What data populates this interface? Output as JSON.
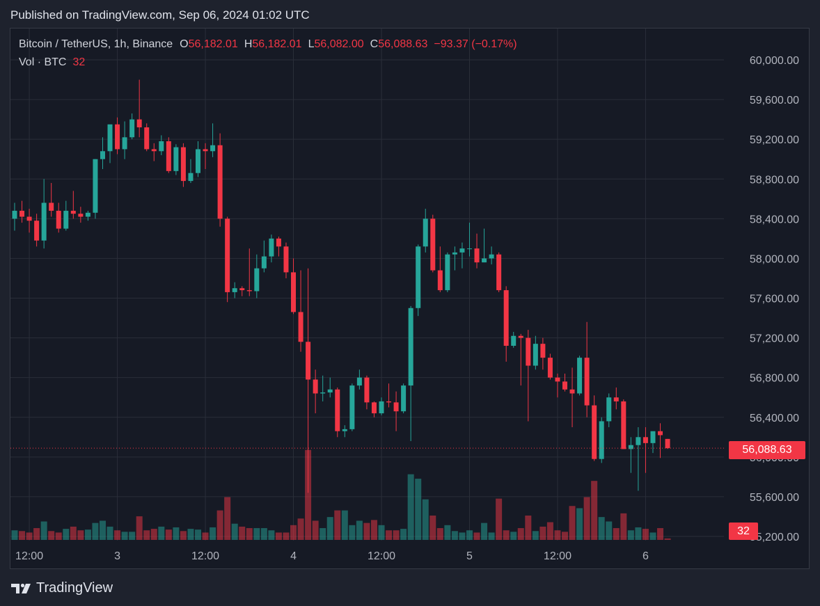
{
  "header": {
    "published": "Published on TradingView.com, Sep 06, 2024 01:02 UTC"
  },
  "legend": {
    "symbol": "Bitcoin / TetherUS, 1h, Binance",
    "o_label": "O",
    "o_value": "56,182.01",
    "h_label": "H",
    "h_value": "56,182.01",
    "l_label": "L",
    "l_value": "56,082.00",
    "c_label": "C",
    "c_value": "56,088.63",
    "change": "−93.37 (−0.17%)"
  },
  "volume_legend": {
    "label": "Vol · BTC",
    "value": "32"
  },
  "price_tag": "56,088.63",
  "volume_tag": "32",
  "footer": {
    "brand": "TradingView"
  },
  "colors": {
    "up": "#26a69a",
    "down": "#f23645",
    "background": "#161a25",
    "grid": "#2a2e39"
  },
  "chart_data": {
    "type": "candlestick",
    "symbol": "BTCUSDT",
    "interval": "1h",
    "ylim": [
      55200,
      60200
    ],
    "y_ticks": [
      {
        "value": 60000,
        "label": "60,000.00"
      },
      {
        "value": 59600,
        "label": "59,600.00"
      },
      {
        "value": 59200,
        "label": "59,200.00"
      },
      {
        "value": 58800,
        "label": "58,800.00"
      },
      {
        "value": 58400,
        "label": "58,400.00"
      },
      {
        "value": 58000,
        "label": "58,000.00"
      },
      {
        "value": 57600,
        "label": "57,600.00"
      },
      {
        "value": 57200,
        "label": "57,200.00"
      },
      {
        "value": 56800,
        "label": "56,800.00"
      },
      {
        "value": 56400,
        "label": "56,400.00"
      },
      {
        "value": 56000,
        "label": "56,000.00"
      },
      {
        "value": 55600,
        "label": "55,600.00"
      },
      {
        "value": 55200,
        "label": "55,200.00"
      }
    ],
    "x_ticks": [
      {
        "index": 2,
        "label": "12:00"
      },
      {
        "index": 14,
        "label": "3"
      },
      {
        "index": 26,
        "label": "12:00"
      },
      {
        "index": 38,
        "label": "4"
      },
      {
        "index": 50,
        "label": "12:00"
      },
      {
        "index": 62,
        "label": "5"
      },
      {
        "index": 74,
        "label": "12:00"
      },
      {
        "index": 86,
        "label": "6"
      }
    ],
    "last_price": 56088.63,
    "candles": [
      {
        "o": 58400,
        "h": 58560,
        "l": 58280,
        "c": 58480,
        "v": 1.3
      },
      {
        "o": 58480,
        "h": 58580,
        "l": 58360,
        "c": 58420,
        "v": 1.2
      },
      {
        "o": 58420,
        "h": 58500,
        "l": 58260,
        "c": 58380,
        "v": 1.0
      },
      {
        "o": 58380,
        "h": 58450,
        "l": 58120,
        "c": 58180,
        "v": 1.6
      },
      {
        "o": 58180,
        "h": 58800,
        "l": 58100,
        "c": 58560,
        "v": 2.5
      },
      {
        "o": 58560,
        "h": 58760,
        "l": 58420,
        "c": 58480,
        "v": 1.2
      },
      {
        "o": 58480,
        "h": 58560,
        "l": 58260,
        "c": 58300,
        "v": 1.0
      },
      {
        "o": 58300,
        "h": 58580,
        "l": 58280,
        "c": 58480,
        "v": 1.5
      },
      {
        "o": 58480,
        "h": 58680,
        "l": 58400,
        "c": 58450,
        "v": 1.8
      },
      {
        "o": 58450,
        "h": 58520,
        "l": 58360,
        "c": 58420,
        "v": 1.3
      },
      {
        "o": 58420,
        "h": 58480,
        "l": 58380,
        "c": 58460,
        "v": 1.4
      },
      {
        "o": 58460,
        "h": 59000,
        "l": 58400,
        "c": 59000,
        "v": 2.3
      },
      {
        "o": 59000,
        "h": 59220,
        "l": 58900,
        "c": 59080,
        "v": 2.6
      },
      {
        "o": 59080,
        "h": 59320,
        "l": 58960,
        "c": 59350,
        "v": 1.8
      },
      {
        "o": 59350,
        "h": 59420,
        "l": 59050,
        "c": 59100,
        "v": 1.3
      },
      {
        "o": 59100,
        "h": 59380,
        "l": 59000,
        "c": 59220,
        "v": 1.1
      },
      {
        "o": 59220,
        "h": 59460,
        "l": 59200,
        "c": 59400,
        "v": 1.1
      },
      {
        "o": 59400,
        "h": 59800,
        "l": 59220,
        "c": 59320,
        "v": 3.2
      },
      {
        "o": 59320,
        "h": 59360,
        "l": 59080,
        "c": 59100,
        "v": 1.3
      },
      {
        "o": 59100,
        "h": 59160,
        "l": 58980,
        "c": 59080,
        "v": 1.5
      },
      {
        "o": 59080,
        "h": 59240,
        "l": 59040,
        "c": 59180,
        "v": 1.8
      },
      {
        "o": 59180,
        "h": 59220,
        "l": 58860,
        "c": 58880,
        "v": 1.4
      },
      {
        "o": 58880,
        "h": 59150,
        "l": 58840,
        "c": 59120,
        "v": 1.7
      },
      {
        "o": 59120,
        "h": 59160,
        "l": 58720,
        "c": 58780,
        "v": 1.2
      },
      {
        "o": 58780,
        "h": 59000,
        "l": 58760,
        "c": 58860,
        "v": 1.5
      },
      {
        "o": 58860,
        "h": 59180,
        "l": 58820,
        "c": 59100,
        "v": 1.4
      },
      {
        "o": 59100,
        "h": 59160,
        "l": 58900,
        "c": 59080,
        "v": 1.0
      },
      {
        "o": 59080,
        "h": 59360,
        "l": 59020,
        "c": 59140,
        "v": 1.7
      },
      {
        "o": 59140,
        "h": 59260,
        "l": 58320,
        "c": 58400,
        "v": 4.0
      },
      {
        "o": 58400,
        "h": 58420,
        "l": 57560,
        "c": 57660,
        "v": 5.8
      },
      {
        "o": 57660,
        "h": 57760,
        "l": 57600,
        "c": 57700,
        "v": 2.2
      },
      {
        "o": 57700,
        "h": 57720,
        "l": 57620,
        "c": 57680,
        "v": 1.8
      },
      {
        "o": 57680,
        "h": 58100,
        "l": 57620,
        "c": 57670,
        "v": 1.6
      },
      {
        "o": 57670,
        "h": 58040,
        "l": 57600,
        "c": 57900,
        "v": 1.6
      },
      {
        "o": 57900,
        "h": 58180,
        "l": 57860,
        "c": 58020,
        "v": 1.6
      },
      {
        "o": 58020,
        "h": 58240,
        "l": 57960,
        "c": 58200,
        "v": 1.3
      },
      {
        "o": 58200,
        "h": 58220,
        "l": 58020,
        "c": 58120,
        "v": 1.0
      },
      {
        "o": 58120,
        "h": 58160,
        "l": 57800,
        "c": 57860,
        "v": 1.0
      },
      {
        "o": 57860,
        "h": 58000,
        "l": 57440,
        "c": 57460,
        "v": 2.0
      },
      {
        "o": 57460,
        "h": 57880,
        "l": 57060,
        "c": 57160,
        "v": 2.9
      },
      {
        "o": 57160,
        "h": 57900,
        "l": 55640,
        "c": 56780,
        "v": 12.2
      },
      {
        "o": 56780,
        "h": 56880,
        "l": 56440,
        "c": 56640,
        "v": 2.6
      },
      {
        "o": 56640,
        "h": 56820,
        "l": 56560,
        "c": 56650,
        "v": 1.6
      },
      {
        "o": 56650,
        "h": 56800,
        "l": 56600,
        "c": 56680,
        "v": 3.1
      },
      {
        "o": 56680,
        "h": 56700,
        "l": 56200,
        "c": 56260,
        "v": 4.0
      },
      {
        "o": 56260,
        "h": 56320,
        "l": 56200,
        "c": 56280,
        "v": 4.0
      },
      {
        "o": 56280,
        "h": 56740,
        "l": 56260,
        "c": 56720,
        "v": 2.0
      },
      {
        "o": 56720,
        "h": 56880,
        "l": 56680,
        "c": 56800,
        "v": 2.6
      },
      {
        "o": 56800,
        "h": 56820,
        "l": 56480,
        "c": 56550,
        "v": 2.3
      },
      {
        "o": 56550,
        "h": 56560,
        "l": 56400,
        "c": 56440,
        "v": 2.7
      },
      {
        "o": 56440,
        "h": 56600,
        "l": 56420,
        "c": 56560,
        "v": 2.0
      },
      {
        "o": 56560,
        "h": 56740,
        "l": 56500,
        "c": 56550,
        "v": 1.3
      },
      {
        "o": 56550,
        "h": 56660,
        "l": 56260,
        "c": 56460,
        "v": 1.3
      },
      {
        "o": 56460,
        "h": 56740,
        "l": 56440,
        "c": 56720,
        "v": 1.5
      },
      {
        "o": 56720,
        "h": 57520,
        "l": 56160,
        "c": 57500,
        "v": 8.9
      },
      {
        "o": 57500,
        "h": 58140,
        "l": 57420,
        "c": 58120,
        "v": 8.3
      },
      {
        "o": 58120,
        "h": 58500,
        "l": 58060,
        "c": 58400,
        "v": 5.5
      },
      {
        "o": 58400,
        "h": 58440,
        "l": 57860,
        "c": 57880,
        "v": 3.3
      },
      {
        "o": 57880,
        "h": 58120,
        "l": 57660,
        "c": 57680,
        "v": 1.6
      },
      {
        "o": 57680,
        "h": 58060,
        "l": 57660,
        "c": 58040,
        "v": 2.0
      },
      {
        "o": 58040,
        "h": 58120,
        "l": 57880,
        "c": 58060,
        "v": 1.2
      },
      {
        "o": 58060,
        "h": 58160,
        "l": 57900,
        "c": 58100,
        "v": 1.0
      },
      {
        "o": 58100,
        "h": 58360,
        "l": 58020,
        "c": 58100,
        "v": 1.3
      },
      {
        "o": 58100,
        "h": 58250,
        "l": 57900,
        "c": 57960,
        "v": 1.0
      },
      {
        "o": 57960,
        "h": 58300,
        "l": 57960,
        "c": 58000,
        "v": 2.3
      },
      {
        "o": 58000,
        "h": 58120,
        "l": 57940,
        "c": 58040,
        "v": 1.0
      },
      {
        "o": 58040,
        "h": 58060,
        "l": 57660,
        "c": 57680,
        "v": 5.6
      },
      {
        "o": 57680,
        "h": 57720,
        "l": 56960,
        "c": 57120,
        "v": 1.3
      },
      {
        "o": 57120,
        "h": 57260,
        "l": 57100,
        "c": 57220,
        "v": 1.1
      },
      {
        "o": 57220,
        "h": 57240,
        "l": 56720,
        "c": 57200,
        "v": 1.6
      },
      {
        "o": 57200,
        "h": 57280,
        "l": 56360,
        "c": 56920,
        "v": 3.3
      },
      {
        "o": 56920,
        "h": 57220,
        "l": 56880,
        "c": 57140,
        "v": 1.2
      },
      {
        "o": 57140,
        "h": 57200,
        "l": 56880,
        "c": 57000,
        "v": 1.8
      },
      {
        "o": 57000,
        "h": 57040,
        "l": 56780,
        "c": 56800,
        "v": 2.4
      },
      {
        "o": 56800,
        "h": 56840,
        "l": 56600,
        "c": 56760,
        "v": 1.3
      },
      {
        "o": 56760,
        "h": 56840,
        "l": 56660,
        "c": 56680,
        "v": 1.1
      },
      {
        "o": 56680,
        "h": 56900,
        "l": 56300,
        "c": 56640,
        "v": 4.6
      },
      {
        "o": 56640,
        "h": 57020,
        "l": 56620,
        "c": 57000,
        "v": 4.3
      },
      {
        "o": 57000,
        "h": 57360,
        "l": 56400,
        "c": 56520,
        "v": 5.8
      },
      {
        "o": 56520,
        "h": 56620,
        "l": 55960,
        "c": 55980,
        "v": 8.0
      },
      {
        "o": 55980,
        "h": 56400,
        "l": 55940,
        "c": 56360,
        "v": 3.1
      },
      {
        "o": 56360,
        "h": 56640,
        "l": 56300,
        "c": 56600,
        "v": 2.5
      },
      {
        "o": 56600,
        "h": 56700,
        "l": 56480,
        "c": 56560,
        "v": 1.6
      },
      {
        "o": 56560,
        "h": 56580,
        "l": 56080,
        "c": 56080,
        "v": 3.6
      },
      {
        "o": 56080,
        "h": 56200,
        "l": 55840,
        "c": 56120,
        "v": 1.3
      },
      {
        "o": 56120,
        "h": 56300,
        "l": 55660,
        "c": 56200,
        "v": 1.7
      },
      {
        "o": 56200,
        "h": 56300,
        "l": 55840,
        "c": 56140,
        "v": 1.5
      },
      {
        "o": 56140,
        "h": 56240,
        "l": 56040,
        "c": 56260,
        "v": 1.0
      },
      {
        "o": 56260,
        "h": 56340,
        "l": 55990,
        "c": 56220,
        "v": 1.6
      },
      {
        "o": 56182.01,
        "h": 56182.01,
        "l": 56082,
        "c": 56088.63,
        "v": 0.2
      }
    ]
  }
}
